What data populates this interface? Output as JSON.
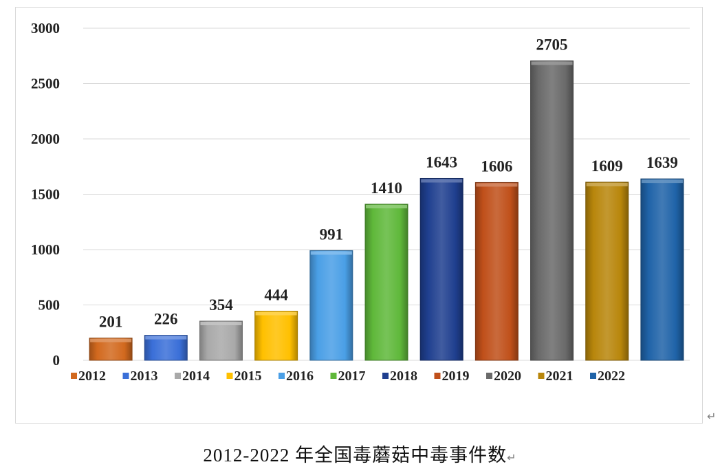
{
  "chart_data": {
    "type": "bar",
    "categories": [
      "2012",
      "2013",
      "2014",
      "2015",
      "2016",
      "2017",
      "2018",
      "2019",
      "2020",
      "2021",
      "2022"
    ],
    "values": [
      201,
      226,
      354,
      444,
      991,
      1410,
      1643,
      1606,
      2705,
      1609,
      1639
    ],
    "data_labels": [
      "201",
      "226",
      "354",
      "444",
      "991",
      "1410",
      "1643",
      "1606",
      "2705",
      "1609",
      "1639"
    ],
    "colors": [
      "#d2691e",
      "#3a6fd8",
      "#a9a9a9",
      "#ffc000",
      "#4a9fe6",
      "#5fb83a",
      "#1f3f8f",
      "#c0501a",
      "#6a6a6a",
      "#b8860b",
      "#1f63a8"
    ],
    "ylim": [
      0,
      3000
    ],
    "yticks": [
      "0",
      "500",
      "1000",
      "1500",
      "2000",
      "2500",
      "3000"
    ],
    "ytick_values": [
      0,
      500,
      1000,
      1500,
      2000,
      2500,
      3000
    ],
    "grid": true,
    "legend": "bottom",
    "title": "",
    "xlabel": "",
    "ylabel": ""
  },
  "caption": {
    "text": "2012-2022 年全国毒蘑菇中毒事件数",
    "return_mark": "↵"
  },
  "frame": {
    "return_mark": "↵"
  }
}
